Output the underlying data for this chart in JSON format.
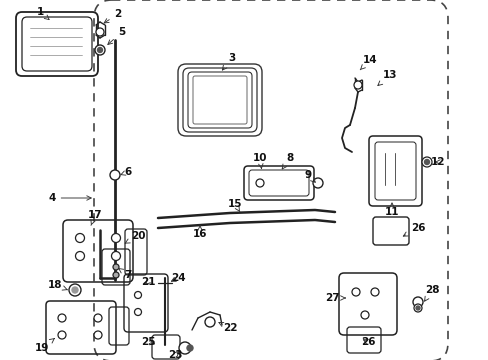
{
  "bg_color": "#ffffff",
  "line_color": "#222222",
  "fig_width": 4.89,
  "fig_height": 3.6,
  "dpi": 100
}
